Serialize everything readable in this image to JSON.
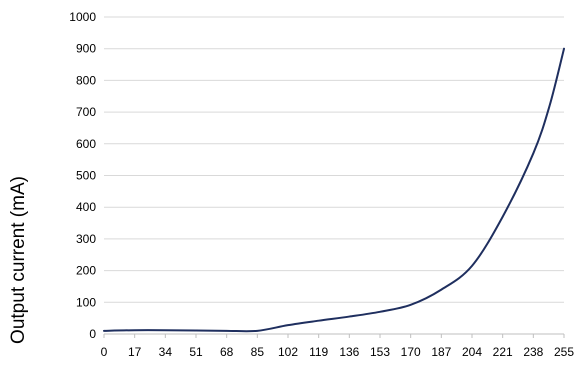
{
  "chart_data": {
    "type": "line",
    "title": "",
    "xlabel": "",
    "ylabel": "Output current (mA)",
    "xlim": [
      0,
      255
    ],
    "ylim": [
      0,
      1000
    ],
    "x_ticks": [
      0,
      17,
      34,
      51,
      68,
      85,
      102,
      119,
      136,
      153,
      170,
      187,
      204,
      221,
      238,
      255
    ],
    "y_ticks": [
      0,
      100,
      200,
      300,
      400,
      500,
      600,
      700,
      800,
      900,
      1000
    ],
    "grid": {
      "horizontal": true,
      "vertical": false
    },
    "legend": "none",
    "series": [
      {
        "color": "#1f2f5f",
        "points": [
          [
            0,
            10
          ],
          [
            17,
            12
          ],
          [
            34,
            12
          ],
          [
            51,
            11
          ],
          [
            68,
            10
          ],
          [
            85,
            10
          ],
          [
            102,
            28
          ],
          [
            119,
            42
          ],
          [
            136,
            55
          ],
          [
            153,
            70
          ],
          [
            170,
            92
          ],
          [
            187,
            140
          ],
          [
            204,
            215
          ],
          [
            221,
            370
          ],
          [
            238,
            570
          ],
          [
            247,
            720
          ],
          [
            255,
            900
          ]
        ]
      }
    ]
  }
}
